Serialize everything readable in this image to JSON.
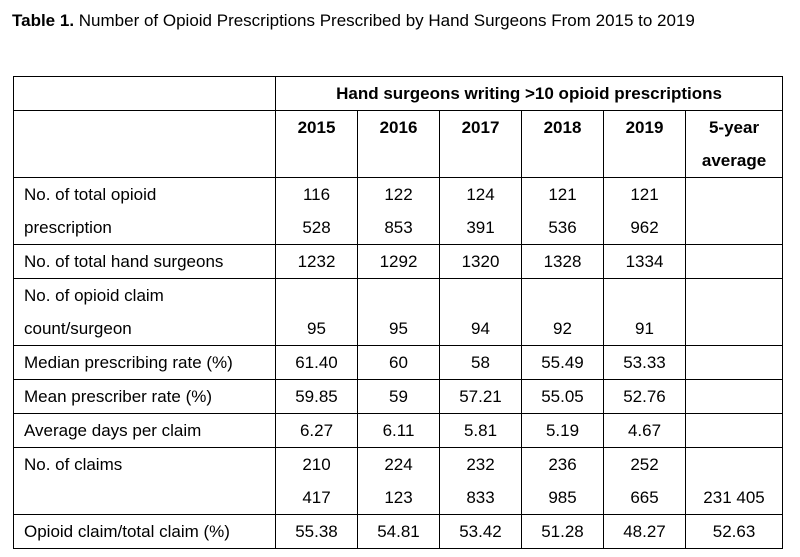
{
  "caption": {
    "label": "Table 1.",
    "title": "Number of Opioid Prescriptions Prescribed by Hand Surgeons From 2015 to 2019"
  },
  "table": {
    "group_header": "Hand surgeons writing >10 opioid prescriptions",
    "years": [
      "2015",
      "2016",
      "2017",
      "2018",
      "2019"
    ],
    "avg_header_line1": "5-year",
    "avg_header_line2": "average",
    "rows": {
      "total_rx": {
        "label_line1": "No. of total opioid",
        "label_line2": "prescription",
        "values_line1": [
          "116",
          "122",
          "124",
          "121",
          "121"
        ],
        "values_line2": [
          "528",
          "853",
          "391",
          "536",
          "962"
        ],
        "average": ""
      },
      "surgeons": {
        "label": "No. of total hand surgeons",
        "values": [
          "1232",
          "1292",
          "1320",
          "1328",
          "1334"
        ],
        "average": ""
      },
      "claim_per_surgeon": {
        "label_line1": "No. of opioid claim",
        "label_line2": "count/surgeon",
        "values": [
          "95",
          "95",
          "94",
          "92",
          "91"
        ],
        "average": ""
      },
      "median_rate": {
        "label": "Median prescribing rate (%)",
        "values": [
          "61.40",
          "60",
          "58",
          "55.49",
          "53.33"
        ],
        "average": ""
      },
      "mean_rate": {
        "label": "Mean prescriber rate (%)",
        "values": [
          "59.85",
          "59",
          "57.21",
          "55.05",
          "52.76"
        ],
        "average": ""
      },
      "days_per_claim": {
        "label": "Average days per claim",
        "values": [
          "6.27",
          "6.11",
          "5.81",
          "5.19",
          "4.67"
        ],
        "average": ""
      },
      "claims": {
        "label": "No. of claims",
        "values_line1": [
          "210",
          "224",
          "232",
          "236",
          "252"
        ],
        "values_line2": [
          "417",
          "123",
          "833",
          "985",
          "665"
        ],
        "average": "231 405"
      },
      "claim_ratio": {
        "label": "Opioid claim/total claim (%)",
        "values": [
          "55.38",
          "54.81",
          "53.42",
          "51.28",
          "48.27"
        ],
        "average": "52.63"
      }
    }
  }
}
